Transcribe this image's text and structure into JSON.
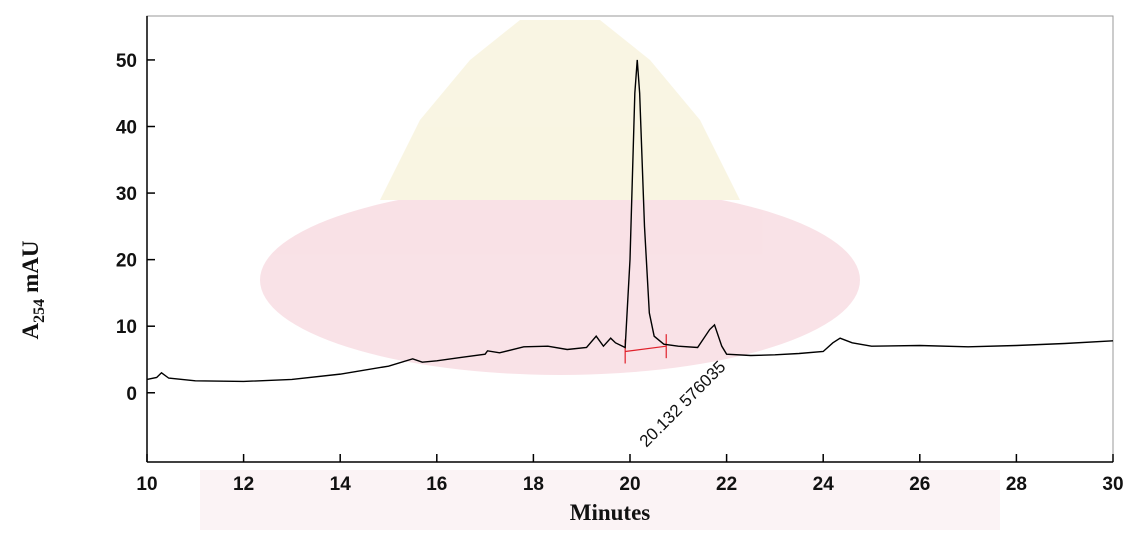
{
  "chart_data": {
    "type": "line",
    "x_label": "Minutes",
    "y_label": {
      "base": "A",
      "subscript": "254",
      "rest": "mAU"
    },
    "xlim": [
      10,
      30
    ],
    "xticks": [
      10,
      12,
      14,
      16,
      18,
      20,
      22,
      24,
      26,
      28,
      30
    ],
    "ylim": [
      -10.4,
      56.6
    ],
    "yticks": [
      0,
      10,
      20,
      30,
      40,
      50
    ],
    "series": [
      {
        "color": "#000000",
        "x": [
          10.0,
          10.2,
          10.3,
          10.45,
          11,
          12,
          13,
          14,
          15,
          15.5,
          15.7,
          16,
          16.5,
          17,
          17.05,
          17.3,
          17.8,
          18.3,
          18.7,
          19.1,
          19.3,
          19.45,
          19.6,
          19.7,
          19.9,
          20.0,
          20.1,
          20.15,
          20.2,
          20.3,
          20.4,
          20.5,
          20.7,
          21.0,
          21.4,
          21.65,
          21.75,
          21.9,
          22.0,
          22.5,
          23,
          23.5,
          24,
          24.2,
          24.35,
          24.6,
          25,
          26,
          27,
          28,
          29,
          30
        ],
        "values": [
          2.0,
          2.3,
          3.0,
          2.2,
          1.8,
          1.7,
          2.0,
          2.8,
          4.0,
          5.1,
          4.6,
          4.8,
          5.3,
          5.8,
          6.3,
          6.0,
          6.9,
          7.0,
          6.5,
          6.8,
          8.5,
          7.0,
          8.2,
          7.5,
          6.8,
          20,
          45,
          50,
          45,
          25,
          12,
          8.5,
          7.3,
          7.0,
          6.8,
          9.5,
          10.2,
          7.0,
          5.8,
          5.6,
          5.7,
          5.9,
          6.2,
          7.5,
          8.2,
          7.5,
          7.0,
          7.1,
          6.9,
          7.1,
          7.4,
          7.8
        ]
      }
    ],
    "baseline": {
      "color": "#e0202a",
      "x": [
        19.9,
        20.75
      ],
      "y": [
        6.2,
        7.0
      ]
    },
    "annotation": {
      "text": "20.132 576035",
      "x": 20.132
    }
  }
}
